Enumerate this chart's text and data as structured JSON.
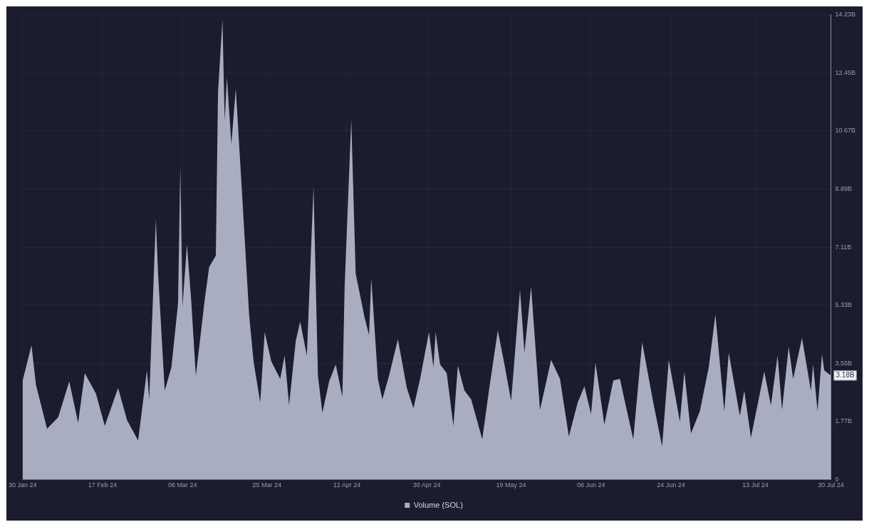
{
  "chart_data": {
    "type": "area",
    "legend": "bottom",
    "grid": true,
    "marker": "none",
    "xlim": [
      "2024-01-30",
      "2024-07-30"
    ],
    "xticks": [
      {
        "value": "2024-01-30",
        "label": "30 Jan 24"
      },
      {
        "value": "2024-02-17",
        "label": "17 Feb 24"
      },
      {
        "value": "2024-03-06",
        "label": "06 Mar 24"
      },
      {
        "value": "2024-03-25",
        "label": "25 Mar 24"
      },
      {
        "value": "2024-04-12",
        "label": "12 Apr 24"
      },
      {
        "value": "2024-04-30",
        "label": "30 Apr 24"
      },
      {
        "value": "2024-05-19",
        "label": "19 May 24"
      },
      {
        "value": "2024-06-06",
        "label": "06 Jun 24"
      },
      {
        "value": "2024-06-24",
        "label": "24 Jun 24"
      },
      {
        "value": "2024-07-13",
        "label": "13 Jul 24"
      },
      {
        "value": "2024-07-30",
        "label": "30 Jul 24"
      }
    ],
    "ylim": [
      0,
      14.23
    ],
    "yticks": [
      0,
      {
        "value": 1.77,
        "label": "1.77B"
      },
      {
        "value": 3.55,
        "label": "3.55B"
      },
      {
        "value": 5.33,
        "label": "5.33B"
      },
      {
        "value": 7.11,
        "label": "7.11B"
      },
      {
        "value": 8.89,
        "label": "8.89B"
      },
      {
        "value": 10.67,
        "label": "10.67B"
      },
      {
        "value": 12.45,
        "label": "12.45B"
      },
      {
        "value": 14.23,
        "label": "14.23B"
      }
    ],
    "annotations": [
      {
        "text": "3.18B",
        "x": "2024-07-30",
        "y": 3.18
      }
    ],
    "x": [
      "2024-01-30",
      "2024-02-01",
      "2024-02-02",
      "2024-02-04T12:00",
      "2024-02-07",
      "2024-02-09T12:00",
      "2024-02-11T12:00",
      "2024-02-13",
      "2024-02-15T12:00",
      "2024-02-17T12:00",
      "2024-02-20T12:00",
      "2024-02-22T12:00",
      "2024-02-25",
      "2024-02-27",
      "2024-02-27T12:00",
      "2024-02-29",
      "2024-02-29T12:00",
      "2024-03-02",
      "2024-03-03T12:00",
      "2024-03-05",
      "2024-03-05T12:00",
      "2024-03-06",
      "2024-03-07",
      "2024-03-08",
      "2024-03-09",
      "2024-03-11",
      "2024-03-12",
      "2024-03-13T12:00",
      "2024-03-14",
      "2024-03-15",
      "2024-03-15T12:00",
      "2024-03-16",
      "2024-03-17",
      "2024-03-18",
      "2024-03-19T12:00",
      "2024-03-21",
      "2024-03-22",
      "2024-03-23T12:00",
      "2024-03-24T12:00",
      "2024-03-26",
      "2024-03-28",
      "2024-03-29",
      "2024-03-30",
      "2024-03-31T12:00",
      "2024-04-01T12:00",
      "2024-04-03",
      "2024-04-04T12:00",
      "2024-04-05T12:00",
      "2024-04-06T12:00",
      "2024-04-08",
      "2024-04-09T12:00",
      "2024-04-11",
      "2024-04-11T12:00",
      "2024-04-13",
      "2024-04-14",
      "2024-04-16",
      "2024-04-17",
      "2024-04-17T12:00",
      "2024-04-19",
      "2024-04-20",
      "2024-04-21T12:00",
      "2024-04-23T12:00",
      "2024-04-25T12:00",
      "2024-04-27",
      "2024-04-28T12:00",
      "2024-04-30T12:00",
      "2024-05-01T12:00",
      "2024-05-02",
      "2024-05-03",
      "2024-05-04T12:00",
      "2024-05-06",
      "2024-05-07",
      "2024-05-08T12:00",
      "2024-05-10",
      "2024-05-12T12:00",
      "2024-05-14",
      "2024-05-16",
      "2024-05-17T12:00",
      "2024-05-19",
      "2024-05-21",
      "2024-05-22",
      "2024-05-23T12:00",
      "2024-05-25T12:00",
      "2024-05-28",
      "2024-05-30",
      "2024-06-01",
      "2024-06-03",
      "2024-06-04T12:00",
      "2024-06-06",
      "2024-06-07",
      "2024-06-09",
      "2024-06-11",
      "2024-06-12T12:00",
      "2024-06-13T12:00",
      "2024-06-15T12:00",
      "2024-06-17T12:00",
      "2024-06-20",
      "2024-06-22",
      "2024-06-23T12:00",
      "2024-06-26",
      "2024-06-27",
      "2024-06-28T12:00",
      "2024-06-30T12:00",
      "2024-07-02T12:00",
      "2024-07-04",
      "2024-07-06",
      "2024-07-07",
      "2024-07-09T12:00",
      "2024-07-10T12:00",
      "2024-07-12",
      "2024-07-15",
      "2024-07-16T12:00",
      "2024-07-18",
      "2024-07-19",
      "2024-07-20T12:00",
      "2024-07-21T12:00",
      "2024-07-23T12:00",
      "2024-07-25T12:00",
      "2024-07-26",
      "2024-07-27",
      "2024-07-28",
      "2024-07-28T12:00",
      "2024-07-30"
    ],
    "series": [
      {
        "name": "Volume (SOL)",
        "color": "#a9adc1",
        "values": [
          3.03,
          4.1,
          2.9,
          1.55,
          1.9,
          3.0,
          1.73,
          3.25,
          2.63,
          1.64,
          2.8,
          1.82,
          1.19,
          3.34,
          2.45,
          7.97,
          6.3,
          2.72,
          3.43,
          5.4,
          9.6,
          5.3,
          7.2,
          5.4,
          3.17,
          5.5,
          6.5,
          6.85,
          11.87,
          14.08,
          10.98,
          12.32,
          10.26,
          11.96,
          8.55,
          5.05,
          3.61,
          2.36,
          4.51,
          3.61,
          3.08,
          3.79,
          2.27,
          4.24,
          4.83,
          3.79,
          8.96,
          3.17,
          2.04,
          2.99,
          3.52,
          2.54,
          5.86,
          11.02,
          6.3,
          4.96,
          4.42,
          6.17,
          3.08,
          2.45,
          3.17,
          4.29,
          2.81,
          2.18,
          3.08,
          4.51,
          3.43,
          4.51,
          3.52,
          3.25,
          1.64,
          3.48,
          2.72,
          2.45,
          1.23,
          2.72,
          4.56,
          3.52,
          2.4,
          5.81,
          3.88,
          5.9,
          2.13,
          3.66,
          3.08,
          1.32,
          2.36,
          2.85,
          2.0,
          3.57,
          1.68,
          3.03,
          3.08,
          2.45,
          1.23,
          4.2,
          2.36,
          1.01,
          3.66,
          1.77,
          3.3,
          1.41,
          2.09,
          3.43,
          5.05,
          2.09,
          3.88,
          1.95,
          2.72,
          1.28,
          3.3,
          2.27,
          3.79,
          2.13,
          4.06,
          3.08,
          4.33,
          2.72,
          3.52,
          2.09,
          3.84,
          3.34,
          3.18
        ]
      }
    ]
  }
}
